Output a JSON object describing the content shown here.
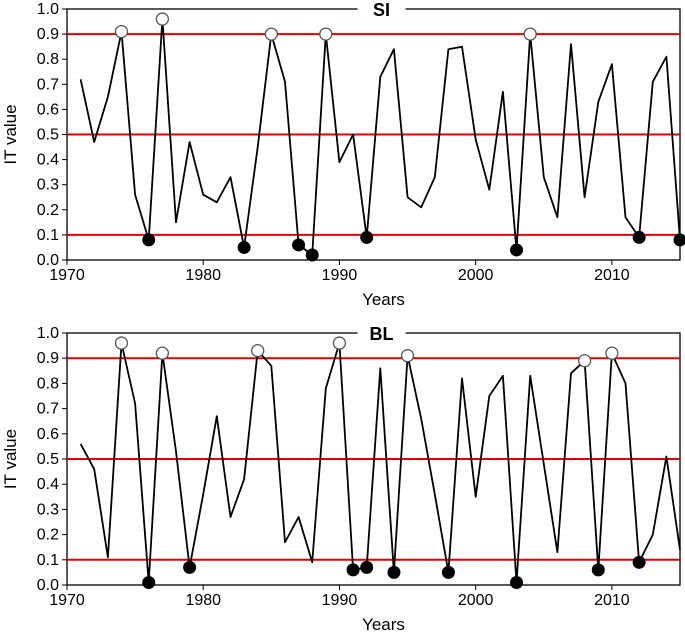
{
  "chart_data": [
    {
      "type": "line",
      "title": "SI",
      "xlabel": "Years",
      "ylabel": "IT value",
      "xlim": [
        1970,
        2015
      ],
      "ylim": [
        0,
        1.0
      ],
      "xticks": [
        "1970",
        "1980",
        "1990",
        "2000",
        "2010"
      ],
      "yticks": [
        "0.0",
        "0.1",
        "0.2",
        "0.3",
        "0.4",
        "0.5",
        "0.6",
        "0.7",
        "0.8",
        "0.9",
        "1.0"
      ],
      "reference_lines": [
        0.1,
        0.5,
        0.9
      ],
      "reference_color": "#e00000",
      "line_color": "#000000",
      "x": [
        1971,
        1972,
        1973,
        1974,
        1975,
        1976,
        1977,
        1978,
        1979,
        1980,
        1981,
        1982,
        1983,
        1984,
        1985,
        1986,
        1987,
        1988,
        1989,
        1990,
        1991,
        1992,
        1993,
        1994,
        1995,
        1996,
        1997,
        1998,
        1999,
        2000,
        2001,
        2002,
        2003,
        2004,
        2005,
        2006,
        2007,
        2008,
        2009,
        2010,
        2011,
        2012,
        2013,
        2014,
        2015
      ],
      "y": [
        0.72,
        0.47,
        0.65,
        0.91,
        0.26,
        0.08,
        0.96,
        0.15,
        0.47,
        0.26,
        0.23,
        0.33,
        0.05,
        0.45,
        0.9,
        0.71,
        0.06,
        0.02,
        0.9,
        0.39,
        0.5,
        0.09,
        0.73,
        0.84,
        0.25,
        0.21,
        0.33,
        0.84,
        0.85,
        0.48,
        0.28,
        0.67,
        0.04,
        0.9,
        0.33,
        0.17,
        0.86,
        0.25,
        0.63,
        0.78,
        0.17,
        0.09,
        0.71,
        0.81,
        0.08
      ],
      "high_markers": [
        [
          1974,
          0.91
        ],
        [
          1977,
          0.96
        ],
        [
          1985,
          0.9
        ],
        [
          1989,
          0.9
        ],
        [
          2004,
          0.9
        ]
      ],
      "low_markers": [
        [
          1976,
          0.08
        ],
        [
          1983,
          0.05
        ],
        [
          1987,
          0.06
        ],
        [
          1988,
          0.02
        ],
        [
          1992,
          0.09
        ],
        [
          2003,
          0.04
        ],
        [
          2012,
          0.09
        ],
        [
          2015,
          0.08
        ]
      ]
    },
    {
      "type": "line",
      "title": "BL",
      "xlabel": "Years",
      "ylabel": "IT value",
      "xlim": [
        1970,
        2015
      ],
      "ylim": [
        0,
        1.0
      ],
      "xticks": [
        "1970",
        "1980",
        "1990",
        "2000",
        "2010"
      ],
      "yticks": [
        "0.0",
        "0.1",
        "0.2",
        "0.3",
        "0.4",
        "0.5",
        "0.6",
        "0.7",
        "0.8",
        "0.9",
        "1.0"
      ],
      "reference_lines": [
        0.1,
        0.5,
        0.9
      ],
      "reference_color": "#e00000",
      "line_color": "#000000",
      "x": [
        1971,
        1972,
        1973,
        1974,
        1975,
        1976,
        1977,
        1978,
        1979,
        1980,
        1981,
        1982,
        1983,
        1984,
        1985,
        1986,
        1987,
        1988,
        1989,
        1990,
        1991,
        1992,
        1993,
        1994,
        1995,
        1996,
        1997,
        1998,
        1999,
        2000,
        2001,
        2002,
        2003,
        2004,
        2005,
        2006,
        2007,
        2008,
        2009,
        2010,
        2011,
        2012,
        2013,
        2014,
        2015
      ],
      "y": [
        0.56,
        0.46,
        0.11,
        0.96,
        0.72,
        0.01,
        0.92,
        0.53,
        0.07,
        0.36,
        0.67,
        0.27,
        0.42,
        0.93,
        0.87,
        0.17,
        0.27,
        0.09,
        0.78,
        0.96,
        0.06,
        0.07,
        0.86,
        0.05,
        0.91,
        0.66,
        0.36,
        0.05,
        0.82,
        0.35,
        0.75,
        0.83,
        0.01,
        0.83,
        0.48,
        0.13,
        0.84,
        0.89,
        0.06,
        0.92,
        0.8,
        0.09,
        0.2,
        0.51,
        0.14
      ],
      "high_markers": [
        [
          1974,
          0.96
        ],
        [
          1977,
          0.92
        ],
        [
          1984,
          0.93
        ],
        [
          1990,
          0.96
        ],
        [
          1995,
          0.91
        ],
        [
          2008,
          0.89
        ],
        [
          2010,
          0.92
        ]
      ],
      "low_markers": [
        [
          1976,
          0.01
        ],
        [
          1979,
          0.07
        ],
        [
          1991,
          0.06
        ],
        [
          1992,
          0.07
        ],
        [
          1994,
          0.05
        ],
        [
          1998,
          0.05
        ],
        [
          2003,
          0.01
        ],
        [
          2009,
          0.06
        ],
        [
          2012,
          0.09
        ]
      ]
    }
  ]
}
